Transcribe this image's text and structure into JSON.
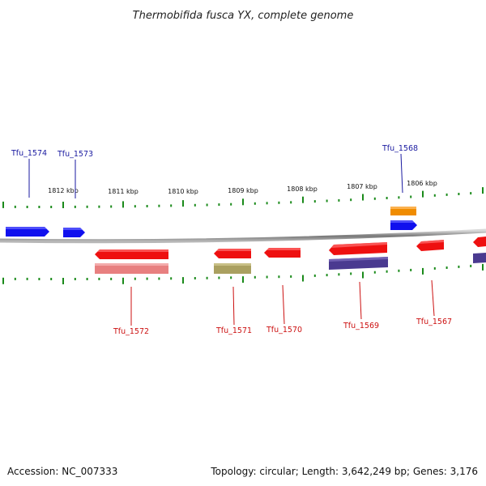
{
  "title": "Thermobifida fusca YX, complete genome",
  "footer": {
    "accession": "Accession: NC_007333",
    "summary": "Topology: circular; Length: 3,642,249 bp; Genes: 3,176"
  },
  "scale_labels": [
    "1812 kbp",
    "1811 kbp",
    "1810 kbp",
    "1809 kbp",
    "1808 kbp",
    "1807 kbp",
    "1806 kbp"
  ],
  "genes": [
    {
      "id": "tfu-1574",
      "label": "Tfu_1574",
      "strand": "forward",
      "color": "#1010ee"
    },
    {
      "id": "tfu-1573",
      "label": "Tfu_1573",
      "strand": "forward",
      "color": "#1010ee"
    },
    {
      "id": "tfu-1568",
      "label": "Tfu_1568",
      "strand": "forward",
      "color": "#1010ee"
    },
    {
      "id": "tfu-1572",
      "label": "Tfu_1572",
      "strand": "reverse",
      "color": "#ee1010"
    },
    {
      "id": "tfu-1571",
      "label": "Tfu_1571",
      "strand": "reverse",
      "color": "#ee1010"
    },
    {
      "id": "tfu-1570",
      "label": "Tfu_1570",
      "strand": "reverse",
      "color": "#ee1010"
    },
    {
      "id": "tfu-1569",
      "label": "Tfu_1569",
      "strand": "reverse",
      "color": "#ee1010"
    },
    {
      "id": "tfu-1567",
      "label": "Tfu_1567",
      "strand": "reverse",
      "color": "#ee1010"
    }
  ],
  "colors": {
    "forward_label": "#1a1aa0",
    "reverse_label": "#cc1010",
    "tick": "#1a8a1a",
    "backbone": "#888888",
    "cog_orange": "#f08c00",
    "cog_pink": "#e88080",
    "cog_olive": "#aaa060",
    "cog_purple": "#4a3a90"
  }
}
